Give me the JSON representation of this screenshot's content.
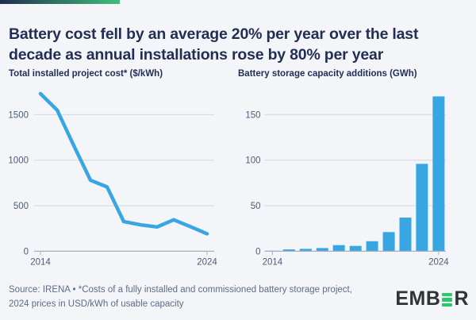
{
  "title": "Battery cost fell by an average 20% per year over the last decade as annual installations rose by 80% per year",
  "chart_data": [
    {
      "type": "line",
      "title": "Total installed project cost* ($/kWh)",
      "x": [
        2014,
        2015,
        2016,
        2017,
        2018,
        2019,
        2020,
        2021,
        2022,
        2023,
        2024
      ],
      "values": [
        1730,
        1550,
        1160,
        780,
        705,
        325,
        290,
        267,
        345,
        270,
        192
      ],
      "ylabel": "$/kWh",
      "ylim": [
        0,
        1800
      ],
      "yticks": [
        0,
        500,
        1000,
        1500
      ],
      "xtick_labels": [
        "2014",
        "2024"
      ],
      "grid": true,
      "legend": "none",
      "line_color": "#38a6e3"
    },
    {
      "type": "bar",
      "title": "Battery storage capacity additions (GWh)",
      "categories": [
        2014,
        2015,
        2016,
        2017,
        2018,
        2019,
        2020,
        2021,
        2022,
        2023,
        2024
      ],
      "values": [
        0.6,
        2,
        2.6,
        3.5,
        6.7,
        5.8,
        11,
        21,
        37,
        96,
        170
      ],
      "ylabel": "GWh",
      "ylim": [
        0,
        175
      ],
      "yticks": [
        0,
        50,
        100,
        150
      ],
      "xtick_labels": [
        "2014",
        "2024"
      ],
      "grid": true,
      "legend": "none",
      "bar_color": "#38a6e3"
    }
  ],
  "footer": {
    "source": "Source: IRENA • *Costs of a fully installed and commissioned battery storage project, 2024 prices in USD/kWh of usable capacity"
  },
  "logo": {
    "text_before": "EMB",
    "text_after": "R",
    "icon": "three-green-bars-e-icon"
  },
  "colors": {
    "background": "#f3f5f9",
    "accent_gradient_start": "#232c4e",
    "accent_gradient_end": "#40bf7b",
    "title_navy": "#232f52",
    "series_blue": "#38a6e3",
    "gridline": "#d2d6e0",
    "axis_line": "#a6afc0",
    "axis_text": "#4e5c77",
    "footer_text": "#5e6c86",
    "logo_dark": "#303238",
    "logo_green": "#2bc96d"
  }
}
